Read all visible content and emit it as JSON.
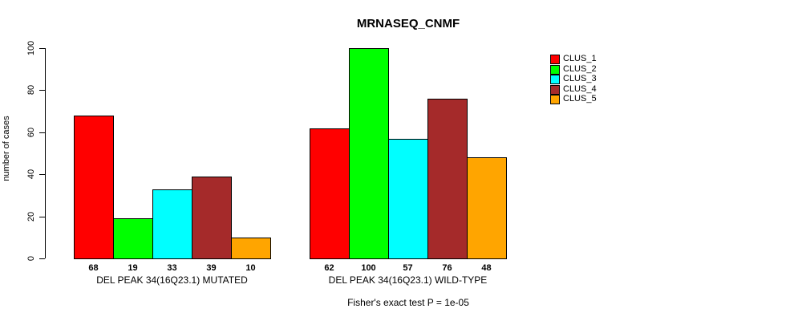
{
  "figure": {
    "background": "#ffffff",
    "text_color": "#000000"
  },
  "chart_data": {
    "type": "bar",
    "title": "MRNASEQ_CNMF",
    "xlabel": "",
    "ylabel": "number of cases",
    "ylim": [
      0,
      100
    ],
    "yticks": [
      0,
      20,
      40,
      60,
      80,
      100
    ],
    "grid": false,
    "legend_position": "right",
    "bar_value_labels_shown": true,
    "clusters": [
      {
        "name": "CLUS_1",
        "color": "#ff0000"
      },
      {
        "name": "CLUS_2",
        "color": "#00ff00"
      },
      {
        "name": "CLUS_3",
        "color": "#00ffff"
      },
      {
        "name": "CLUS_4",
        "color": "#a52a2a"
      },
      {
        "name": "CLUS_5",
        "color": "#ffa500"
      }
    ],
    "groups": [
      {
        "label": "DEL PEAK 34(16Q23.1) MUTATED",
        "values": [
          68,
          19,
          33,
          39,
          10
        ]
      },
      {
        "label": "DEL PEAK 34(16Q23.1) WILD-TYPE",
        "values": [
          62,
          100,
          57,
          76,
          48
        ]
      }
    ],
    "footnote": "Fisher's exact test P = 1e-05"
  }
}
